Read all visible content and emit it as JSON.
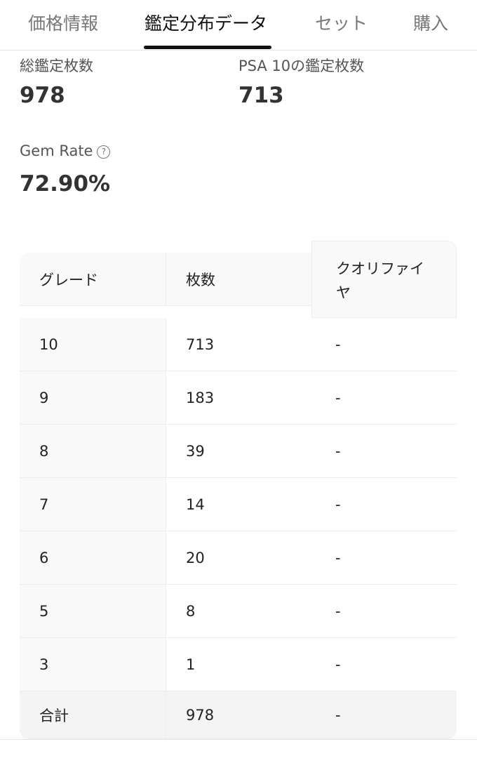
{
  "tabs": [
    {
      "label": "価格情報",
      "active": false
    },
    {
      "label": "鑑定分布データ",
      "active": true
    },
    {
      "label": "セット",
      "active": false
    },
    {
      "label": "購入",
      "active": false
    }
  ],
  "stats": {
    "total_label": "総鑑定枚数",
    "total_value": "978",
    "psa10_label": "PSA 10の鑑定枚数",
    "psa10_value": "713",
    "gem_rate_label": "Gem Rate",
    "gem_rate_help_icon": "?",
    "gem_rate_value": "72.90%"
  },
  "table": {
    "headers": [
      "グレード",
      "枚数",
      "クオリファイヤ"
    ],
    "rows": [
      [
        "10",
        "713",
        "-"
      ],
      [
        "9",
        "183",
        "-"
      ],
      [
        "8",
        "39",
        "-"
      ],
      [
        "7",
        "14",
        "-"
      ],
      [
        "6",
        "20",
        "-"
      ],
      [
        "5",
        "8",
        "-"
      ],
      [
        "3",
        "1",
        "-"
      ]
    ],
    "total": [
      "合計",
      "978",
      "-"
    ]
  }
}
